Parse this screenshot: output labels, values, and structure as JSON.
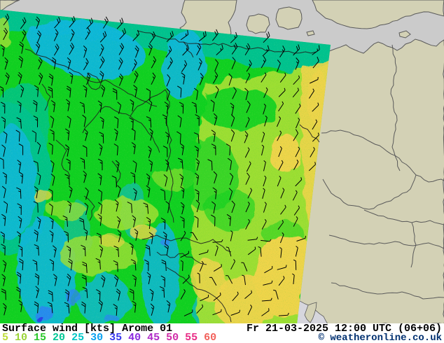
{
  "footer": {
    "title_parameter": "Surface wind",
    "title_units": "[kts]",
    "title_model": "Arome 01",
    "datetime": "Fr 21-03-2025 12:00 UTC (06+06)",
    "copyright": "© weatheronline.co.uk",
    "legend": [
      {
        "value": "5",
        "color": "#bedc3a"
      },
      {
        "value": "10",
        "color": "#9bd437"
      },
      {
        "value": "15",
        "color": "#2bc82b"
      },
      {
        "value": "20",
        "color": "#00c795"
      },
      {
        "value": "25",
        "color": "#00c7c7"
      },
      {
        "value": "30",
        "color": "#0aa1f0"
      },
      {
        "value": "35",
        "color": "#3939ee"
      },
      {
        "value": "40",
        "color": "#8c2ce0"
      },
      {
        "value": "45",
        "color": "#b02cc8"
      },
      {
        "value": "50",
        "color": "#d02ca8"
      },
      {
        "value": "55",
        "color": "#e82c86"
      },
      {
        "value": "60",
        "color": "#f2605a"
      }
    ]
  },
  "map": {
    "sea_color": "#cbcbcb",
    "land_color": "#d3d1b5",
    "adriatic_color": "#d6d6dd",
    "land_border_color": "#5a5a5a",
    "domain_border_color": "#1f1f1f",
    "barb_color": "#000000",
    "wind_palette": {
      "green": "#10d020",
      "teal": "#00c28e",
      "cyan": "#12b6dc",
      "blue": "#2b86f2",
      "dark_blue": "#2b3ae8",
      "yellow_green": "#a2df33",
      "yellow": "#eed44a"
    }
  }
}
